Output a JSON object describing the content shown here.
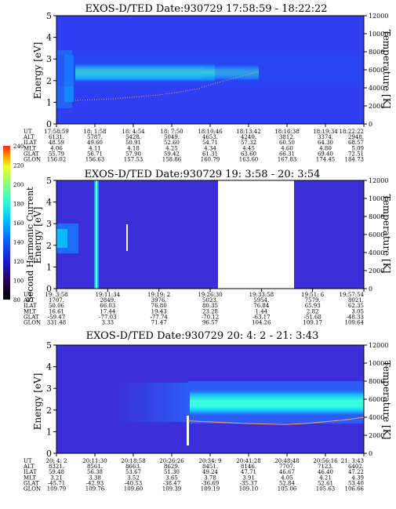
{
  "chart_data": [
    {
      "type": "heatmap",
      "title": "EXOS-D/TED   Date:930729  17:58:59 - 18:22:22",
      "ylabel": "Energy [eV]",
      "y2label": "Temperature [K]",
      "ylim": [
        0,
        5
      ],
      "y2lim": [
        0,
        12000
      ],
      "yticks": [
        "0",
        "1",
        "2",
        "3",
        "4",
        "5"
      ],
      "y2ticks": [
        "0",
        "2000",
        "4000",
        "6000",
        "8000",
        "10000",
        "12000"
      ],
      "band_energy_ev": [
        2.0,
        2.8
      ],
      "temperature_k": [
        2600,
        2700,
        2800,
        3000,
        3200,
        3500,
        3900,
        4600,
        5200,
        5800
      ],
      "table": {
        "row_labels": [
          "UT",
          "ALT",
          "ILAT",
          "MLT",
          "GLAT",
          "GLON"
        ],
        "columns": [
          [
            "17:58:59",
            "6131.",
            "48.59",
            "4.06",
            "55.79",
            "156.02"
          ],
          [
            "18: 1:58",
            "5787.",
            "49.60",
            "4.11",
            "56.71",
            "156.63"
          ],
          [
            "18: 4:54",
            "5428.",
            "50.91",
            "4.18",
            "57.90",
            "157.53"
          ],
          [
            "18: 7:50",
            "5049.",
            "52.60",
            "4.25",
            "59.42",
            "158.86"
          ],
          [
            "18:10:46",
            "4653.",
            "54.71",
            "4.34",
            "61.31",
            "160.79"
          ],
          [
            "18:13:42",
            "4240.",
            "57.32",
            "4.45",
            "63.60",
            "163.60"
          ],
          [
            "18:16:38",
            "3812.",
            "60.50",
            "4.60",
            "66.31",
            "167.83"
          ],
          [
            "18:19:34",
            "3374.",
            "64.30",
            "4.80",
            "69.40",
            "174.45"
          ],
          [
            "18:22:22",
            "2948.",
            "68.57",
            "5.09",
            "72.51",
            "184.73"
          ]
        ]
      }
    },
    {
      "type": "heatmap",
      "title": "EXOS-D/TED   Date:930729  19: 3:58 - 20: 3:54",
      "ylabel": "Energy [eV]",
      "y2label": "Temperature [K]",
      "ylim": [
        0,
        5
      ],
      "y2lim": [
        0,
        12000
      ],
      "yticks": [
        "0",
        "1",
        "2",
        "3",
        "4",
        "5"
      ],
      "y2ticks": [
        "0",
        "2000",
        "4000",
        "6000",
        "8000",
        "10000",
        "12000"
      ],
      "table": {
        "row_labels": [
          "UT",
          "ALT",
          "ILAT",
          "MLT",
          "GLAT",
          "GLON"
        ],
        "columns": [
          [
            "19: 3:58",
            "1707.",
            "50.06",
            "16.61",
            "-59.47",
            "331.48"
          ],
          [
            "19:11:34",
            "2849.",
            "66.03",
            "17.44",
            "-77.03",
            "3.33"
          ],
          [
            "19:19: 2",
            "3976.",
            "76.80",
            "19.43",
            "-77.74",
            "71.47"
          ],
          [
            "19:26:30",
            "5023.",
            "80.35",
            "23.28",
            "-70.12",
            "96.57"
          ],
          [
            "19:33:58",
            "5954.",
            "76.84",
            "1.44",
            "-63.17",
            "104.26"
          ],
          [
            "19:51: 6",
            "7579.",
            "65.93",
            "2.82",
            "-51.68",
            "109.17"
          ],
          [
            "19:57:54",
            "8021.",
            "62.35",
            "3.05",
            "-48.33",
            "109.64"
          ]
        ]
      }
    },
    {
      "type": "heatmap",
      "title": "EXOS-D/TED   Date:930729  20: 4: 2 - 21: 3:43",
      "ylabel": "Energy [eV]",
      "y2label": "Temperature [K]",
      "ylim": [
        0,
        5
      ],
      "y2lim": [
        0,
        12000
      ],
      "yticks": [
        "0",
        "1",
        "2",
        "3",
        "4",
        "5"
      ],
      "y2ticks": [
        "0",
        "2000",
        "4000",
        "6000",
        "8000",
        "10000",
        "12000"
      ],
      "band_energy_ev": [
        2.0,
        3.0
      ],
      "temperature_k": [
        3600,
        3500,
        3400,
        3300,
        3250,
        3200,
        3300,
        3500,
        3700,
        4000
      ],
      "table": {
        "row_labels": [
          "UT",
          "ALT",
          "ILAT",
          "MLT",
          "GLAT",
          "GLON"
        ],
        "columns": [
          [
            "20: 4: 2",
            "8321.",
            "59.48",
            "3.21",
            "-45.71",
            "109.79"
          ],
          [
            "20:11:30",
            "8561.",
            "56.38",
            "3.38",
            "-42.93",
            "109.76"
          ],
          [
            "20:18:58",
            "8663.",
            "53.67",
            "3.52",
            "-40.53",
            "109.60"
          ],
          [
            "20:26:26",
            "8629.",
            "51.30",
            "3.65",
            "-38.47",
            "109.39"
          ],
          [
            "20:34: 9",
            "8451.",
            "49.24",
            "3.78",
            "-36.69",
            "109.19"
          ],
          [
            "20:41:28",
            "8146.",
            "47.71",
            "3.91",
            "-35.37",
            "109.10"
          ],
          [
            "20:48:48",
            "7707.",
            "46.67",
            "4.05",
            "52.84",
            "105.06"
          ],
          [
            "20:56:16",
            "7123.",
            "46.40",
            "4.21",
            "52.61",
            "105.63"
          ],
          [
            "21: 3:43",
            "6402.",
            "47.22",
            "4.39",
            "53.40",
            "106.66"
          ]
        ]
      }
    }
  ],
  "colorbar": {
    "label": "Second Harmonic Current",
    "ticks": [
      "80",
      "100",
      "120",
      "140",
      "160",
      "180",
      "200",
      "220",
      "240"
    ],
    "colors": [
      "#000000",
      "#2a0058",
      "#1b1dc8",
      "#0a5cf0",
      "#00b5ff",
      "#2ff0e0",
      "#80ff80",
      "#e8ff30",
      "#ffa000",
      "#ff2a00"
    ]
  }
}
